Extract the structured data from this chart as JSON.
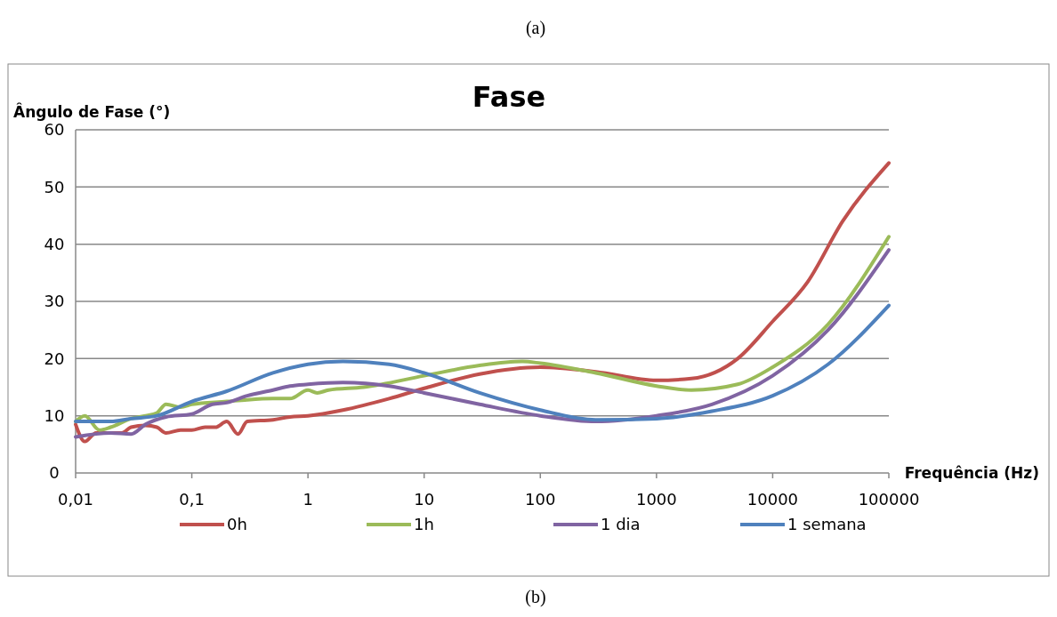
{
  "chart_data": {
    "type": "line",
    "title": "Fase",
    "ylabel": "Ângulo de Fase (°)",
    "xlabel": "Frequência (Hz)",
    "annotations": [
      "(a)",
      "(b)"
    ],
    "log": "x",
    "grid": "y",
    "legend": "bottom",
    "marker": "none",
    "line_style": "solid",
    "xlim": [
      0.01,
      100000
    ],
    "xticks": [
      {
        "value": 0.01,
        "label": "0,01"
      },
      {
        "value": 0.1,
        "label": "0,1"
      },
      1,
      10,
      100,
      1000,
      10000,
      100000
    ],
    "ylim": [
      0,
      60
    ],
    "yticks": [
      0,
      10,
      20,
      30,
      40,
      50,
      60
    ],
    "series": [
      {
        "name": "0h",
        "color": "#c0504d",
        "x": [
          0.01,
          0.012,
          0.015,
          0.02,
          0.025,
          0.03,
          0.04,
          0.05,
          0.06,
          0.08,
          0.1,
          0.13,
          0.16,
          0.2,
          0.25,
          0.3,
          0.5,
          0.7,
          1,
          2,
          5,
          10,
          30,
          100,
          300,
          1000,
          2000,
          5000,
          10000,
          20000,
          40000,
          100000
        ],
        "values": [
          8.5,
          5.5,
          7,
          7,
          7,
          8,
          8.3,
          8,
          7,
          7.5,
          7.5,
          8,
          8,
          9,
          6.8,
          9,
          9.3,
          9.8,
          10,
          11,
          13,
          14.8,
          17.3,
          18.5,
          17.7,
          16.2,
          16.5,
          20,
          26.5,
          33.4,
          44,
          54.2
        ]
      },
      {
        "name": "1h",
        "color": "#9bbb59",
        "x": [
          0.01,
          0.012,
          0.016,
          0.02,
          0.03,
          0.04,
          0.05,
          0.06,
          0.08,
          0.1,
          0.2,
          0.3,
          0.5,
          0.7,
          1,
          1.2,
          1.5,
          3,
          10,
          30,
          70,
          100,
          300,
          1000,
          2000,
          5000,
          10000,
          30000,
          100000
        ],
        "values": [
          9,
          10,
          7.5,
          8,
          9.5,
          10,
          10.5,
          12,
          11.5,
          12,
          12.5,
          12.8,
          13,
          13,
          14.5,
          14,
          14.5,
          15,
          17,
          18.8,
          19.5,
          19.2,
          17.5,
          15.2,
          14.5,
          15.5,
          18.5,
          26,
          41.3
        ]
      },
      {
        "name": "1 dia",
        "color": "#8064a2",
        "x": [
          0.01,
          0.02,
          0.03,
          0.04,
          0.06,
          0.1,
          0.15,
          0.2,
          0.3,
          0.5,
          0.7,
          1,
          2,
          5,
          10,
          30,
          100,
          300,
          1000,
          3000,
          10000,
          30000,
          100000
        ],
        "values": [
          6.3,
          7,
          6.8,
          8.5,
          9.8,
          10.3,
          12,
          12.3,
          13.5,
          14.5,
          15.2,
          15.5,
          15.8,
          15.2,
          14,
          12,
          10,
          9,
          10,
          12,
          17,
          25,
          39
        ]
      },
      {
        "name": "1 semana",
        "color": "#4f81bd",
        "x": [
          0.01,
          0.02,
          0.03,
          0.05,
          0.1,
          0.2,
          0.5,
          1,
          2,
          5,
          10,
          30,
          100,
          300,
          1000,
          3000,
          10000,
          30000,
          100000
        ],
        "values": [
          9,
          9,
          9.5,
          10,
          12.5,
          14.3,
          17.5,
          19,
          19.5,
          19,
          17.5,
          14,
          11,
          9.3,
          9.5,
          10.8,
          13.5,
          19,
          29.3
        ]
      }
    ]
  }
}
